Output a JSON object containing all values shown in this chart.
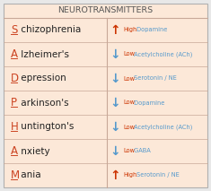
{
  "title": "NEUROTRANSMITTERS",
  "bg_color": "#fce8d8",
  "outer_bg": "#e8e8e8",
  "rows": [
    {
      "letter": "S",
      "rest": " chizophrenia",
      "arrow": "↑",
      "arrow_color": "#cc3300",
      "level": "High",
      "level_color": "#cc3300",
      "nt": " Dopamine",
      "nt_color": "#5599cc"
    },
    {
      "letter": "A",
      "rest": " lzheimer's",
      "arrow": "↓",
      "arrow_color": "#5599cc",
      "level": "Low",
      "level_color": "#cc3300",
      "nt": " Acetylcholine (ACh)",
      "nt_color": "#5599cc"
    },
    {
      "letter": "D",
      "rest": " epression",
      "arrow": "↓",
      "arrow_color": "#5599cc",
      "level": "Low",
      "level_color": "#cc3300",
      "nt": " Serotonin / NE",
      "nt_color": "#5599cc"
    },
    {
      "letter": "P",
      "rest": " arkinson's",
      "arrow": "↓",
      "arrow_color": "#5599cc",
      "level": "Low",
      "level_color": "#cc3300",
      "nt": " Dopamine",
      "nt_color": "#5599cc"
    },
    {
      "letter": "H",
      "rest": " untington's",
      "arrow": "↓",
      "arrow_color": "#5599cc",
      "level": "Low",
      "level_color": "#cc3300",
      "nt": " Acetylcholine (ACh)",
      "nt_color": "#5599cc"
    },
    {
      "letter": "A",
      "rest": " nxiety",
      "arrow": "↓",
      "arrow_color": "#5599cc",
      "level": "Low",
      "level_color": "#cc3300",
      "nt": " GABA",
      "nt_color": "#5599cc"
    },
    {
      "letter": "M",
      "rest": " ania",
      "arrow": "↑",
      "arrow_color": "#cc3300",
      "level": "High",
      "level_color": "#cc3300",
      "nt": " Serotonin / NE",
      "nt_color": "#5599cc"
    }
  ],
  "title_fontsize": 6.8,
  "letter_fontsize": 8.5,
  "rest_fontsize": 7.5,
  "arrow_fontsize": 10,
  "small_fontsize": 4.8,
  "divider_color": "#c8a898",
  "border_color": "#b0b0b0",
  "letter_color": "#cc4422",
  "rest_color": "#222222",
  "title_color": "#555555"
}
